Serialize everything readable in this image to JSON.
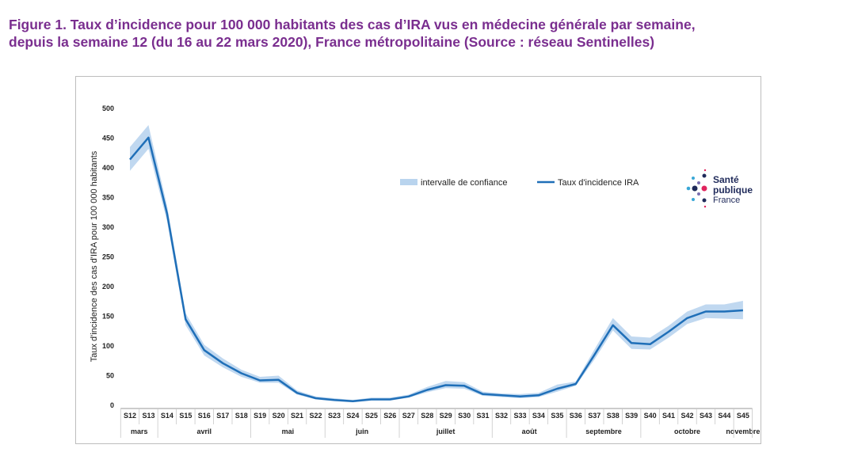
{
  "figure_title": {
    "line1": "Figure 1. Taux d’incidence pour 100 000 habitants des cas d’IRA vus en médecine générale par semaine,",
    "line2": "depuis la semaine 12 (du 16 au 22 mars 2020), France métropolitaine (Source : réseau Sentinelles)"
  },
  "colors": {
    "title": "#7a2e8f",
    "line": "#1f6fb8",
    "band": "#b9d4ee"
  },
  "logo": {
    "line1": "Santé",
    "line2": "publique",
    "line3": "France"
  },
  "chart_data": {
    "type": "line",
    "title": "",
    "ylabel": "Taux d'incidence des cas d'IRA pour 100 000 habitants",
    "xlabel": "",
    "ylim": [
      0,
      500
    ],
    "yticks": [
      0,
      50,
      100,
      150,
      200,
      250,
      300,
      350,
      400,
      450,
      500
    ],
    "categories": [
      "S12",
      "S13",
      "S14",
      "S15",
      "S16",
      "S17",
      "S18",
      "S19",
      "S20",
      "S21",
      "S22",
      "S23",
      "S24",
      "S25",
      "S26",
      "S27",
      "S28",
      "S29",
      "S30",
      "S31",
      "S32",
      "S33",
      "S34",
      "S35",
      "S36",
      "S37",
      "S38",
      "S39",
      "S40",
      "S41",
      "S42",
      "S43",
      "S44",
      "S45"
    ],
    "months": [
      {
        "label": "mars",
        "start": 0,
        "end": 1
      },
      {
        "label": "avril",
        "start": 2,
        "end": 6
      },
      {
        "label": "mai",
        "start": 7,
        "end": 10
      },
      {
        "label": "juin",
        "start": 11,
        "end": 14
      },
      {
        "label": "juillet",
        "start": 15,
        "end": 19
      },
      {
        "label": "août",
        "start": 20,
        "end": 23
      },
      {
        "label": "septembre",
        "start": 24,
        "end": 27
      },
      {
        "label": "octobre",
        "start": 28,
        "end": 32
      },
      {
        "label": "novembre",
        "start": 33,
        "end": 33
      }
    ],
    "legend": {
      "band": "intervalle de confiance",
      "line": "Taux d'incidence IRA"
    },
    "series": [
      {
        "name": "Taux d'incidence IRA",
        "values": [
          414,
          451,
          323,
          145,
          93,
          71,
          54,
          42,
          43,
          21,
          12,
          9,
          7,
          10,
          10,
          15,
          26,
          34,
          33,
          19,
          17,
          15,
          17,
          28,
          36,
          85,
          135,
          105,
          103,
          124,
          147,
          158,
          158,
          160
        ]
      }
    ],
    "confidence_interval": {
      "name": "intervalle de confiance",
      "lower": [
        395,
        432,
        310,
        135,
        84,
        64,
        48,
        38,
        38,
        18,
        10,
        7,
        5,
        8,
        8,
        13,
        22,
        29,
        28,
        16,
        14,
        12,
        14,
        23,
        33,
        77,
        126,
        95,
        94,
        114,
        137,
        147,
        146,
        145
      ],
      "upper": [
        435,
        472,
        336,
        155,
        102,
        79,
        60,
        48,
        50,
        25,
        15,
        12,
        9,
        13,
        13,
        18,
        31,
        41,
        39,
        23,
        20,
        19,
        21,
        35,
        40,
        94,
        147,
        116,
        114,
        134,
        158,
        170,
        170,
        176
      ]
    }
  }
}
